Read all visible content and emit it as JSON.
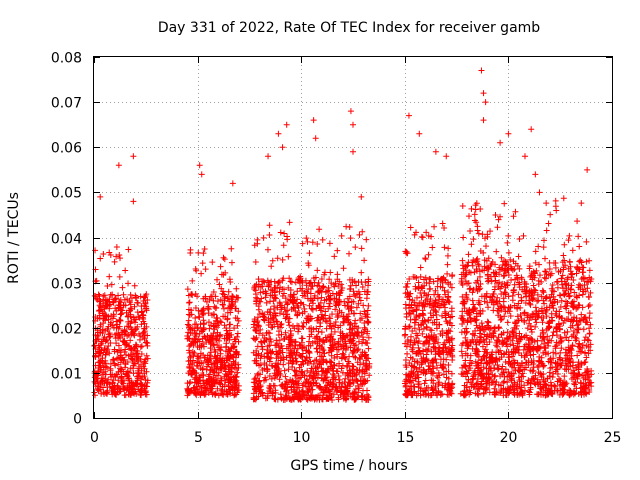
{
  "chart_data": {
    "type": "scatter",
    "title": "Day 331 of 2022, Rate Of TEC Index for receiver gamb",
    "xlabel": "GPS time / hours",
    "ylabel": "ROTI / TECUs",
    "xlim": [
      0,
      25
    ],
    "ylim": [
      0,
      0.08
    ],
    "x_ticks": [
      "0",
      "5",
      "10",
      "15",
      "20",
      "25"
    ],
    "y_ticks": [
      "0",
      "0.01",
      "0.02",
      "0.03",
      "0.04",
      "0.05",
      "0.06",
      "0.07",
      "0.08"
    ],
    "grid": true,
    "marker": "plus",
    "series": [
      {
        "color": "#ff0000",
        "segments": [
          {
            "x_start": 0.0,
            "x_end": 2.6,
            "y_base_low": 0.005,
            "y_base_high": 0.035
          },
          {
            "x_start": 4.5,
            "x_end": 7.0,
            "y_base_low": 0.005,
            "y_base_high": 0.035
          },
          {
            "x_start": 7.7,
            "x_end": 13.3,
            "y_base_low": 0.004,
            "y_base_high": 0.04
          },
          {
            "x_start": 15.0,
            "x_end": 17.3,
            "y_base_low": 0.005,
            "y_base_high": 0.04
          },
          {
            "x_start": 17.7,
            "x_end": 24.0,
            "y_base_low": 0.005,
            "y_base_high": 0.045
          }
        ],
        "outliers": [
          {
            "x": 0.3,
            "y": 0.049
          },
          {
            "x": 1.2,
            "y": 0.056
          },
          {
            "x": 1.9,
            "y": 0.058
          },
          {
            "x": 1.9,
            "y": 0.048
          },
          {
            "x": 5.1,
            "y": 0.056
          },
          {
            "x": 5.2,
            "y": 0.054
          },
          {
            "x": 6.7,
            "y": 0.052
          },
          {
            "x": 8.4,
            "y": 0.058
          },
          {
            "x": 8.9,
            "y": 0.063
          },
          {
            "x": 9.3,
            "y": 0.065
          },
          {
            "x": 9.1,
            "y": 0.06
          },
          {
            "x": 10.6,
            "y": 0.066
          },
          {
            "x": 10.7,
            "y": 0.062
          },
          {
            "x": 12.4,
            "y": 0.068
          },
          {
            "x": 12.5,
            "y": 0.065
          },
          {
            "x": 12.5,
            "y": 0.059
          },
          {
            "x": 12.9,
            "y": 0.049
          },
          {
            "x": 15.2,
            "y": 0.067
          },
          {
            "x": 15.7,
            "y": 0.063
          },
          {
            "x": 16.5,
            "y": 0.059
          },
          {
            "x": 17.0,
            "y": 0.058
          },
          {
            "x": 18.7,
            "y": 0.077
          },
          {
            "x": 18.8,
            "y": 0.072
          },
          {
            "x": 18.9,
            "y": 0.07
          },
          {
            "x": 18.8,
            "y": 0.066
          },
          {
            "x": 19.6,
            "y": 0.061
          },
          {
            "x": 20.0,
            "y": 0.063
          },
          {
            "x": 20.8,
            "y": 0.058
          },
          {
            "x": 21.1,
            "y": 0.064
          },
          {
            "x": 21.3,
            "y": 0.054
          },
          {
            "x": 21.5,
            "y": 0.05
          },
          {
            "x": 23.8,
            "y": 0.055
          }
        ]
      }
    ]
  }
}
